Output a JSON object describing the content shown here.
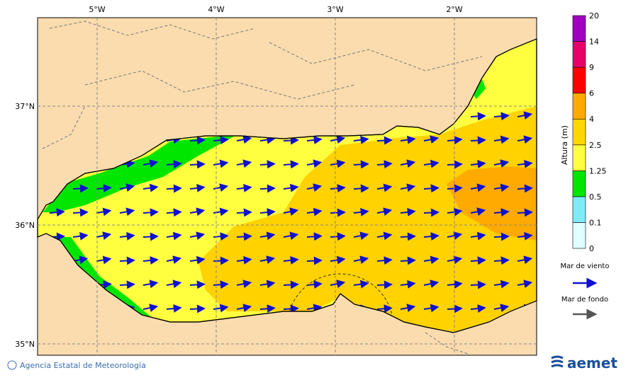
{
  "map": {
    "lon_labels": [
      "5°W",
      "4°W",
      "3°W",
      "2°W"
    ],
    "lat_labels": [
      "37°N",
      "36°N",
      "35°N"
    ]
  },
  "colorbar": {
    "title": "Altura (m)",
    "labels": [
      0,
      0.1,
      0.5,
      1.25,
      2.5,
      4,
      6,
      9,
      14,
      20
    ],
    "colors": [
      "#e0ffff",
      "#80eaf8",
      "#00e600",
      "#ffff40",
      "#ffd700",
      "#ffaa00",
      "#ff0000",
      "#e8006a",
      "#a000c0"
    ]
  },
  "legend": {
    "wind_sea": "Mar de viento",
    "swell": "Mar de fondo"
  },
  "footer": {
    "credit": "Agencia Estatal de Meteorología",
    "logo": "aemet"
  }
}
